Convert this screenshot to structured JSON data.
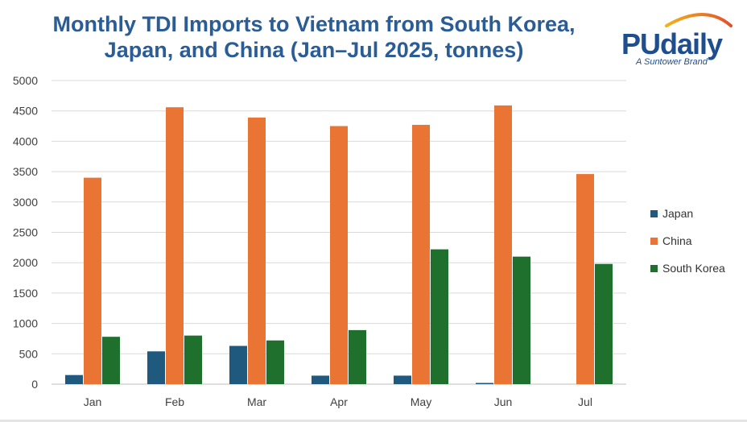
{
  "header": {
    "title_line1": "Monthly TDI Imports to Vietnam from South Korea,",
    "title_line2": "Japan, and China (Jan–Jul 2025, tonnes)"
  },
  "logo": {
    "wordmark": "PUdaily",
    "tagline": "A Suntower Brand"
  },
  "colors": {
    "title": "#2a5c96",
    "japan": "#1f5a7e",
    "china": "#ea7434",
    "south_korea": "#1f6f2d",
    "grid": "#d9d9d9"
  },
  "chart_data": {
    "type": "bar",
    "title": "Monthly TDI Imports to Vietnam from South Korea, Japan, and China (Jan–Jul 2025, tonnes)",
    "categories": [
      "Jan",
      "Feb",
      "Mar",
      "Apr",
      "May",
      "Jun",
      "Jul"
    ],
    "series": [
      {
        "name": "Japan",
        "values": [
          150,
          540,
          630,
          140,
          140,
          20,
          0
        ]
      },
      {
        "name": "China",
        "values": [
          3400,
          4560,
          4390,
          4250,
          4270,
          4590,
          3460
        ]
      },
      {
        "name": "South Korea",
        "values": [
          780,
          800,
          720,
          890,
          2220,
          2100,
          1980
        ]
      }
    ],
    "ylim": [
      0,
      5000
    ],
    "yticks": [
      "0",
      "500",
      "1000",
      "1500",
      "2000",
      "2500",
      "3000",
      "3500",
      "4000",
      "4500",
      "5000"
    ],
    "xlabel": "",
    "ylabel": "",
    "grid": true,
    "legend_position": "right"
  }
}
